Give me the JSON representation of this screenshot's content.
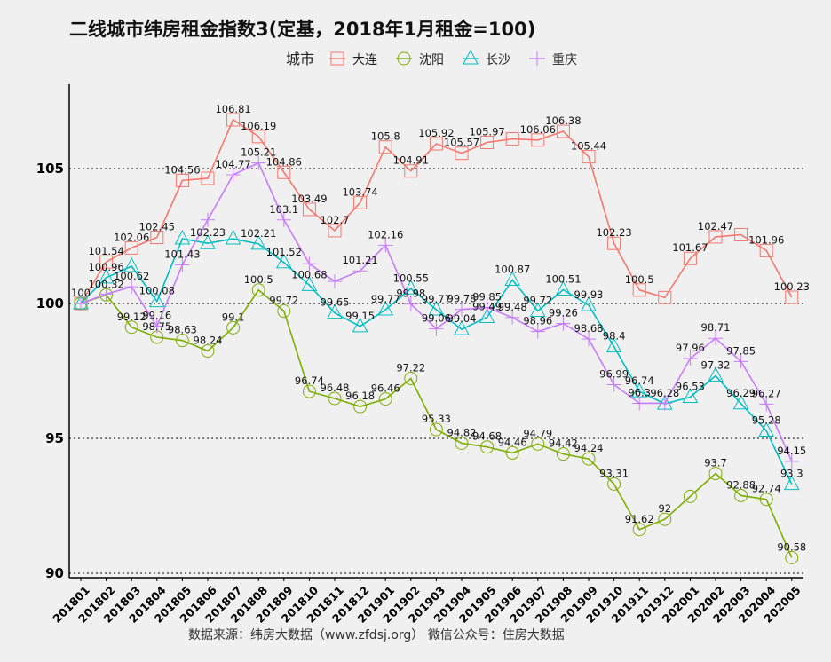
{
  "chart_data": {
    "type": "line",
    "title": "二线城市纬房租金指数3(定基，2018年1月租金=100)",
    "legend_title": "城市",
    "legend_position": "top",
    "caption": "数据来源：纬房大数据（www.zfdsj.org）   微信公众号：住房大数据",
    "xlabel": "",
    "ylabel": "",
    "ylim": [
      90,
      107
    ],
    "yticks": [
      90,
      95,
      100,
      105
    ],
    "grid": "horizontal dotted at y ticks",
    "categories": [
      "201801",
      "201802",
      "201803",
      "201804",
      "201805",
      "201806",
      "201807",
      "201808",
      "201809",
      "201810",
      "201811",
      "201812",
      "201901",
      "201902",
      "201903",
      "201904",
      "201905",
      "201906",
      "201907",
      "201908",
      "201909",
      "201910",
      "201911",
      "201912",
      "202001",
      "202002",
      "202003",
      "202004",
      "202005"
    ],
    "series": [
      {
        "name": "大连",
        "color": "#F8766D",
        "marker": "square",
        "values": [
          100,
          101.54,
          102.06,
          102.45,
          104.56,
          104.64,
          106.81,
          106.19,
          104.86,
          103.49,
          102.7,
          103.74,
          105.8,
          104.91,
          105.92,
          105.57,
          105.97,
          106.1,
          106.06,
          106.38,
          105.44,
          102.23,
          100.5,
          100.22,
          101.67,
          102.47,
          102.55,
          101.96,
          100.23
        ],
        "labels": [
          "100",
          "101.54",
          "102.06",
          "102.45",
          "104.56",
          null,
          "106.81",
          "106.19",
          "104.86",
          "103.49",
          "102.7",
          "103.74",
          "105.8",
          "104.91",
          "105.92",
          "105.57",
          "105.97",
          null,
          "106.06",
          "106.38",
          "105.44",
          "102.23",
          "100.5",
          null,
          "101.67",
          "102.47",
          null,
          "101.96",
          "100.23"
        ]
      },
      {
        "name": "沈阳",
        "color": "#7CAE00",
        "marker": "circle",
        "values": [
          100,
          100.32,
          99.12,
          98.75,
          98.63,
          98.24,
          99.1,
          100.5,
          99.72,
          96.74,
          96.48,
          96.18,
          96.46,
          97.22,
          95.33,
          94.82,
          94.68,
          94.46,
          94.79,
          94.42,
          94.24,
          93.31,
          91.62,
          92,
          92.85,
          93.7,
          92.88,
          92.74,
          90.58
        ],
        "labels": [
          null,
          "100.32",
          "99.12",
          "98.75",
          "98.63",
          "98.24",
          "99.1",
          "100.5",
          "99.72",
          "96.74",
          "96.48",
          "96.18",
          "96.46",
          "97.22",
          "95.33",
          "94.82",
          "94.68",
          "94.46",
          "94.79",
          "94.42",
          "94.24",
          "93.31",
          "91.62",
          "92",
          null,
          "93.7",
          "92.88",
          "92.74",
          "90.58"
        ]
      },
      {
        "name": "长沙",
        "color": "#00BFC4",
        "marker": "triangle",
        "values": [
          100,
          100.96,
          101.38,
          100.08,
          102.4,
          102.23,
          102.4,
          102.21,
          101.52,
          100.68,
          99.65,
          99.15,
          99.77,
          100.55,
          99.77,
          99.04,
          99.49,
          100.87,
          99.72,
          100.51,
          99.93,
          98.4,
          96.74,
          96.28,
          96.53,
          97.32,
          96.29,
          95.28,
          93.3
        ],
        "labels": [
          null,
          "100.96",
          null,
          "100.08",
          null,
          "102.23",
          null,
          "102.21",
          "101.52",
          "100.68",
          "99.65",
          "99.15",
          "99.77",
          "100.55",
          "99.77",
          "99.04",
          "99.49",
          "100.87",
          "99.72",
          "100.51",
          "99.93",
          "98.4",
          "96.74",
          "96.28",
          "96.53",
          "97.32",
          "96.29",
          "95.28",
          "93.3"
        ]
      },
      {
        "name": "重庆",
        "color": "#C77CFF",
        "marker": "plus",
        "values": [
          100,
          100.35,
          100.62,
          99.16,
          101.43,
          103.1,
          104.77,
          105.21,
          103.1,
          101.47,
          100.82,
          101.21,
          102.16,
          99.98,
          99.06,
          99.78,
          99.85,
          99.48,
          98.96,
          99.26,
          98.68,
          96.99,
          96.3,
          96.3,
          97.96,
          98.71,
          97.85,
          96.27,
          94.15
        ],
        "labels": [
          null,
          null,
          "100.62",
          "99.16",
          "101.43",
          null,
          "104.77",
          "105.21",
          "103.1",
          null,
          null,
          "101.21",
          "102.16",
          "99.98",
          "99.06",
          "99.78",
          "99.85",
          "99.48",
          "98.96",
          "99.26",
          "98.68",
          "96.99",
          "96.3",
          null,
          "97.96",
          "98.71",
          "97.85",
          "96.27",
          "94.15"
        ]
      }
    ]
  }
}
